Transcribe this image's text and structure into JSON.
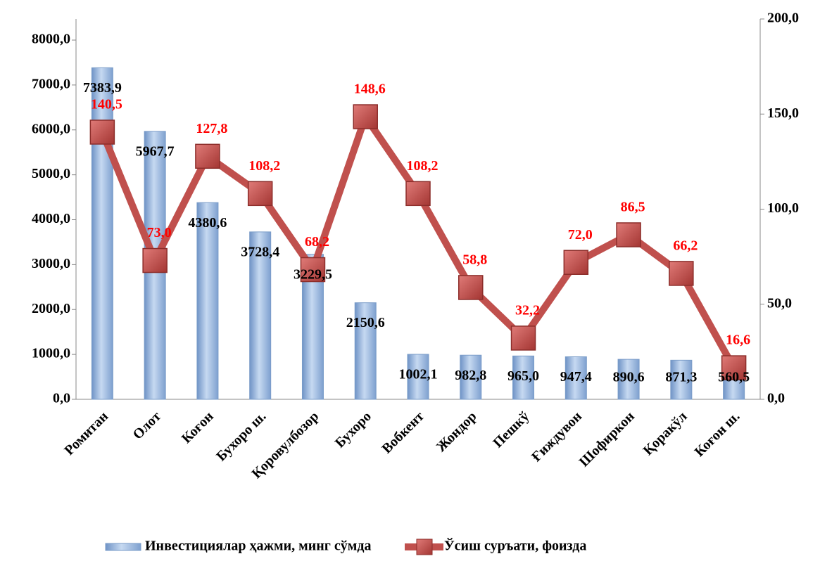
{
  "chart_data": {
    "type": "bar_line",
    "categories": [
      "Ромитан",
      "Олот",
      "Коғон",
      "Бухоро ш.",
      "Қоровулбозор",
      "Бухоро",
      "Вобкент",
      "Жондор",
      "Пешкў",
      "Ғиждувон",
      "Шофиркон",
      "Қоракўл",
      "Коғон ш."
    ],
    "series": [
      {
        "name": "Инвестициялар ҳажми, минг сўмда",
        "type": "bar",
        "color": "#95b3d7",
        "values": [
          7383.9,
          5967.7,
          4380.6,
          3728.4,
          3229.5,
          2150.6,
          1002.1,
          982.8,
          965.0,
          947.4,
          890.6,
          871.3,
          560.5
        ],
        "value_labels": [
          "7383,9",
          "5967,7",
          "4380,6",
          "3728,4",
          "3229,5",
          "2150,6",
          "1002,1",
          "982,8",
          "965,0",
          "947,4",
          "890,6",
          "871,3",
          "560,5"
        ]
      },
      {
        "name": "Ўсиш суръати, фоизда",
        "type": "line",
        "axis": "y2",
        "color": "#c0504d",
        "values": [
          140.5,
          73.0,
          127.8,
          108.2,
          68.2,
          148.6,
          108.2,
          58.8,
          32.2,
          72.0,
          86.5,
          66.2,
          16.6
        ],
        "value_labels": [
          "140,5",
          "73,0",
          "127,8",
          "108,2",
          "68,2",
          "148,6",
          "108,2",
          "58,8",
          "32,2",
          "72,0",
          "86,5",
          "66,2",
          "16,6"
        ]
      }
    ],
    "ylim": [
      0,
      8470
    ],
    "yticks": [
      {
        "value": 0,
        "label": "0,0"
      },
      {
        "value": 1000,
        "label": "1000,0"
      },
      {
        "value": 2000,
        "label": "2000,0"
      },
      {
        "value": 3000,
        "label": "3000,0"
      },
      {
        "value": 4000,
        "label": "4000,0"
      },
      {
        "value": 5000,
        "label": "5000,0"
      },
      {
        "value": 6000,
        "label": "6000,0"
      },
      {
        "value": 7000,
        "label": "7000,0"
      },
      {
        "value": 8000,
        "label": "8000,0"
      }
    ],
    "y2lim": [
      0,
      200
    ],
    "y2ticks": [
      {
        "value": 0,
        "label": "0,0"
      },
      {
        "value": 50,
        "label": "50,0"
      },
      {
        "value": 100,
        "label": "100,0"
      },
      {
        "value": 150,
        "label": "150,0"
      },
      {
        "value": 200,
        "label": "200,0"
      }
    ],
    "legend": "bottom"
  }
}
